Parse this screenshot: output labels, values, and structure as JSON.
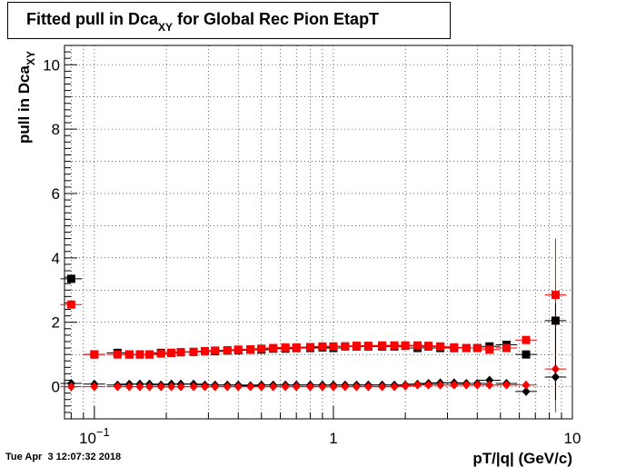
{
  "chart_data": {
    "type": "scatter",
    "title_main": "Fitted pull in Dca",
    "title_sub": "XY",
    "title_tail": " for Global Rec Pion EtapT",
    "xlabel": "pT/|q| (GeV/c)",
    "ylabel_main": "pull in Dca",
    "ylabel_sub": "XY",
    "x_scale": "log",
    "xlim": [
      0.075,
      10
    ],
    "ylim": [
      -1,
      10.6
    ],
    "grid": true,
    "x_tick_labels": [
      {
        "value": 0.1,
        "base": "10",
        "exp": "−1"
      },
      {
        "value": 1,
        "base": "1",
        "exp": ""
      },
      {
        "value": 10,
        "base": "10",
        "exp": ""
      }
    ],
    "y_tick_labels": [
      0,
      2,
      4,
      6,
      8,
      10
    ],
    "series": [
      {
        "color": "#000000",
        "marker": "square",
        "x": [
          0.08,
          0.1,
          0.125,
          0.14,
          0.155,
          0.17,
          0.19,
          0.21,
          0.23,
          0.26,
          0.29,
          0.32,
          0.36,
          0.4,
          0.45,
          0.5,
          0.56,
          0.63,
          0.7,
          0.8,
          0.9,
          1.0,
          1.12,
          1.25,
          1.4,
          1.6,
          1.8,
          2.0,
          2.25,
          2.5,
          2.8,
          3.2,
          3.6,
          4.0,
          4.5,
          5.3,
          6.4,
          8.5
        ],
        "y": [
          3.35,
          1.0,
          1.05,
          1.0,
          1.0,
          1.0,
          1.05,
          1.05,
          1.07,
          1.08,
          1.1,
          1.1,
          1.12,
          1.13,
          1.15,
          1.15,
          1.18,
          1.18,
          1.2,
          1.2,
          1.22,
          1.2,
          1.25,
          1.25,
          1.25,
          1.25,
          1.25,
          1.27,
          1.2,
          1.25,
          1.2,
          1.2,
          1.2,
          1.2,
          1.25,
          1.3,
          1.0,
          2.05
        ]
      },
      {
        "color": "#ff0000",
        "marker": "square",
        "x": [
          0.08,
          0.1,
          0.125,
          0.14,
          0.155,
          0.17,
          0.19,
          0.21,
          0.23,
          0.26,
          0.29,
          0.32,
          0.36,
          0.4,
          0.45,
          0.5,
          0.56,
          0.63,
          0.7,
          0.8,
          0.9,
          1.0,
          1.12,
          1.25,
          1.4,
          1.6,
          1.8,
          2.0,
          2.25,
          2.5,
          2.8,
          3.2,
          3.6,
          4.0,
          4.5,
          5.3,
          6.4,
          8.5
        ],
        "y": [
          2.55,
          1.0,
          1.0,
          1.0,
          1.0,
          1.0,
          1.03,
          1.05,
          1.07,
          1.08,
          1.1,
          1.12,
          1.13,
          1.15,
          1.16,
          1.18,
          1.2,
          1.22,
          1.22,
          1.23,
          1.25,
          1.25,
          1.25,
          1.27,
          1.27,
          1.28,
          1.28,
          1.28,
          1.28,
          1.27,
          1.25,
          1.22,
          1.2,
          1.2,
          1.15,
          1.2,
          1.45,
          2.85
        ]
      },
      {
        "color": "#000000",
        "marker": "diamond",
        "x": [
          0.08,
          0.1,
          0.125,
          0.14,
          0.155,
          0.17,
          0.19,
          0.21,
          0.23,
          0.26,
          0.29,
          0.32,
          0.36,
          0.4,
          0.45,
          0.5,
          0.56,
          0.63,
          0.7,
          0.8,
          0.9,
          1.0,
          1.12,
          1.25,
          1.4,
          1.6,
          1.8,
          2.0,
          2.25,
          2.5,
          2.8,
          3.2,
          3.6,
          4.0,
          4.5,
          5.3,
          6.4,
          8.5
        ],
        "y": [
          0.1,
          0.08,
          0.05,
          0.08,
          0.08,
          0.08,
          0.05,
          0.08,
          0.08,
          0.08,
          0.05,
          0.05,
          0.05,
          0.05,
          0.03,
          0.05,
          0.05,
          0.05,
          0.05,
          0.05,
          0.05,
          0.05,
          0.05,
          0.05,
          0.05,
          0.05,
          0.05,
          0.05,
          0.08,
          0.1,
          0.12,
          0.12,
          0.1,
          0.1,
          0.2,
          0.1,
          -0.15,
          0.3
        ]
      },
      {
        "color": "#ff0000",
        "marker": "diamond",
        "x": [
          0.08,
          0.1,
          0.125,
          0.14,
          0.155,
          0.17,
          0.19,
          0.21,
          0.23,
          0.26,
          0.29,
          0.32,
          0.36,
          0.4,
          0.45,
          0.5,
          0.56,
          0.63,
          0.7,
          0.8,
          0.9,
          1.0,
          1.12,
          1.25,
          1.4,
          1.6,
          1.8,
          2.0,
          2.25,
          2.5,
          2.8,
          3.2,
          3.6,
          4.0,
          4.5,
          5.3,
          6.4,
          8.5
        ],
        "y": [
          0.0,
          0.0,
          0.0,
          0.0,
          0.0,
          0.0,
          0.0,
          0.0,
          0.0,
          0.0,
          0.0,
          0.0,
          0.0,
          0.0,
          0.0,
          0.0,
          0.0,
          0.0,
          0.0,
          0.0,
          0.0,
          0.0,
          0.0,
          0.0,
          0.0,
          0.0,
          0.0,
          0.02,
          0.05,
          0.05,
          0.05,
          0.05,
          0.05,
          0.05,
          0.05,
          0.05,
          0.05,
          0.55
        ]
      }
    ]
  },
  "footer": {
    "timestamp": "Tue Apr  3 12:07:32 2018"
  }
}
